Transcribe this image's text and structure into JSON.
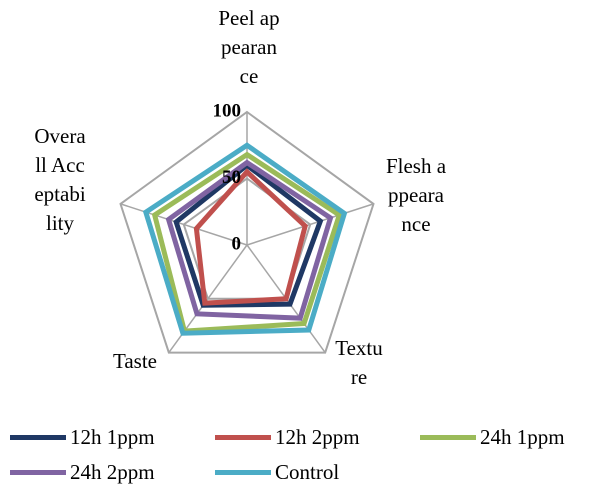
{
  "chart_data": {
    "type": "radar",
    "categories": [
      "Peel appearance",
      "Flesh appearance",
      "Texture",
      "Taste",
      "Overall Acceptability"
    ],
    "series": [
      {
        "name": "12h 1ppm",
        "color": "#1f3864",
        "values": [
          60,
          58,
          55,
          56,
          56
        ]
      },
      {
        "name": "12h 2ppm",
        "color": "#c0504d",
        "values": [
          55,
          46,
          50,
          54,
          40
        ]
      },
      {
        "name": "24h 1ppm",
        "color": "#9bbb59",
        "values": [
          68,
          73,
          73,
          80,
          73
        ]
      },
      {
        "name": "24h 2ppm",
        "color": "#8064a2",
        "values": [
          62,
          66,
          68,
          64,
          62
        ]
      },
      {
        "name": "Control",
        "color": "#4bacc6",
        "values": [
          75,
          77,
          79,
          82,
          80
        ]
      }
    ],
    "ylim": [
      0,
      100
    ],
    "yticks": [
      0,
      50,
      100
    ],
    "grid": true
  }
}
